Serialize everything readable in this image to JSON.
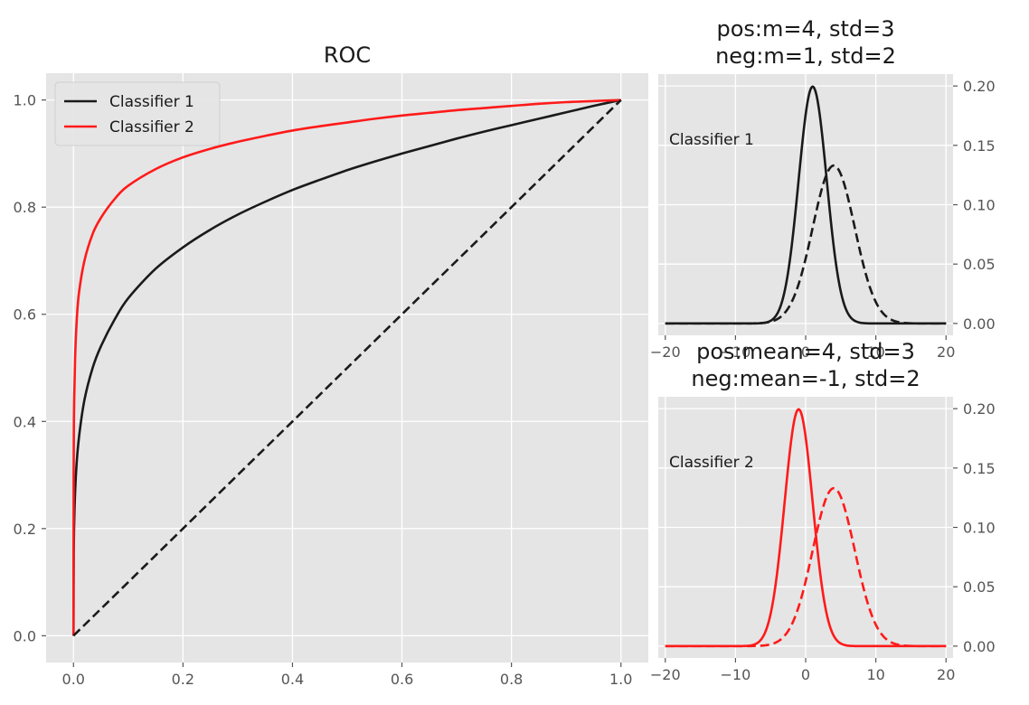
{
  "chart_data": [
    {
      "id": "roc",
      "type": "line",
      "title": "ROC",
      "xlim": [
        -0.05,
        1.05
      ],
      "ylim": [
        -0.05,
        1.05
      ],
      "xticks": [
        0.0,
        0.2,
        0.4,
        0.6,
        0.8,
        1.0
      ],
      "yticks": [
        0.0,
        0.2,
        0.4,
        0.6,
        0.8,
        1.0
      ],
      "xtick_labels": [
        "0.0",
        "0.2",
        "0.4",
        "0.6",
        "0.8",
        "1.0"
      ],
      "ytick_labels": [
        "0.0",
        "0.2",
        "0.4",
        "0.6",
        "0.8",
        "1.0"
      ],
      "grid": true,
      "legend_position": "top-left",
      "series": [
        {
          "name": "Classifier 1",
          "color": "#1a1a1a",
          "style": "solid",
          "x": [
            0,
            0.0005,
            0.002,
            0.005,
            0.01,
            0.02,
            0.035,
            0.05,
            0.075,
            0.1,
            0.15,
            0.2,
            0.25,
            0.3,
            0.35,
            0.4,
            0.45,
            0.5,
            0.55,
            0.6,
            0.65,
            0.7,
            0.75,
            0.8,
            0.85,
            0.9,
            0.95,
            1.0
          ],
          "y": [
            0,
            0.16,
            0.24,
            0.31,
            0.37,
            0.44,
            0.5,
            0.54,
            0.59,
            0.63,
            0.685,
            0.725,
            0.758,
            0.786,
            0.81,
            0.832,
            0.851,
            0.869,
            0.885,
            0.9,
            0.914,
            0.928,
            0.941,
            0.953,
            0.965,
            0.977,
            0.989,
            1.0
          ]
        },
        {
          "name": "Classifier 2",
          "color": "#ff1a1a",
          "style": "solid",
          "x": [
            0,
            0.0003,
            0.001,
            0.003,
            0.006,
            0.01,
            0.02,
            0.035,
            0.05,
            0.075,
            0.1,
            0.15,
            0.2,
            0.25,
            0.3,
            0.35,
            0.4,
            0.45,
            0.5,
            0.55,
            0.6,
            0.65,
            0.7,
            0.75,
            0.8,
            0.85,
            0.9,
            0.95,
            1.0
          ],
          "y": [
            0,
            0.3,
            0.42,
            0.52,
            0.59,
            0.64,
            0.7,
            0.75,
            0.78,
            0.815,
            0.84,
            0.871,
            0.893,
            0.909,
            0.922,
            0.933,
            0.943,
            0.951,
            0.958,
            0.965,
            0.971,
            0.976,
            0.981,
            0.985,
            0.989,
            0.993,
            0.996,
            0.998,
            1.0
          ]
        },
        {
          "name": "",
          "color": "#1a1a1a",
          "style": "dashed",
          "x": [
            0,
            1
          ],
          "y": [
            0,
            1
          ]
        }
      ]
    },
    {
      "id": "dist1",
      "type": "line",
      "title": "pos:m=4, std=3\nneg:m=1, std=2",
      "annotation": "Classifier 1",
      "xlim": [
        -21,
        21
      ],
      "ylim": [
        -0.01,
        0.21
      ],
      "xticks": [
        -20,
        -10,
        0,
        10,
        20
      ],
      "yticks": [
        0.0,
        0.05,
        0.1,
        0.15,
        0.2
      ],
      "ytick_labels": [
        "0.00",
        "0.05",
        "0.10",
        "0.15",
        "0.20"
      ],
      "yaxis_side": "right",
      "grid": true,
      "series": [
        {
          "name": "",
          "kind": "normal",
          "mean": 1,
          "std": 2,
          "color": "#1a1a1a",
          "style": "solid",
          "x_range": [
            -20,
            20
          ]
        },
        {
          "name": "",
          "kind": "normal",
          "mean": 4,
          "std": 3,
          "color": "#1a1a1a",
          "style": "dashed",
          "x_range": [
            -20,
            20
          ]
        }
      ]
    },
    {
      "id": "dist2",
      "type": "line",
      "title": "pos:mean=4, std=3\nneg:mean=-1, std=2",
      "annotation": "Classifier 2",
      "xlim": [
        -21,
        21
      ],
      "ylim": [
        -0.01,
        0.21
      ],
      "xticks": [
        -20,
        -10,
        0,
        10,
        20
      ],
      "xtick_labels": [
        "−20",
        "−10",
        "0",
        "10",
        "20"
      ],
      "yticks": [
        0.0,
        0.05,
        0.1,
        0.15,
        0.2
      ],
      "ytick_labels": [
        "0.00",
        "0.05",
        "0.10",
        "0.15",
        "0.20"
      ],
      "yaxis_side": "right",
      "grid": true,
      "series": [
        {
          "name": "",
          "kind": "normal",
          "mean": -1,
          "std": 2,
          "color": "#ff1a1a",
          "style": "solid",
          "x_range": [
            -20,
            20
          ]
        },
        {
          "name": "",
          "kind": "normal",
          "mean": 4,
          "std": 3,
          "color": "#ff1a1a",
          "style": "dashed",
          "x_range": [
            -20,
            20
          ]
        }
      ]
    }
  ]
}
